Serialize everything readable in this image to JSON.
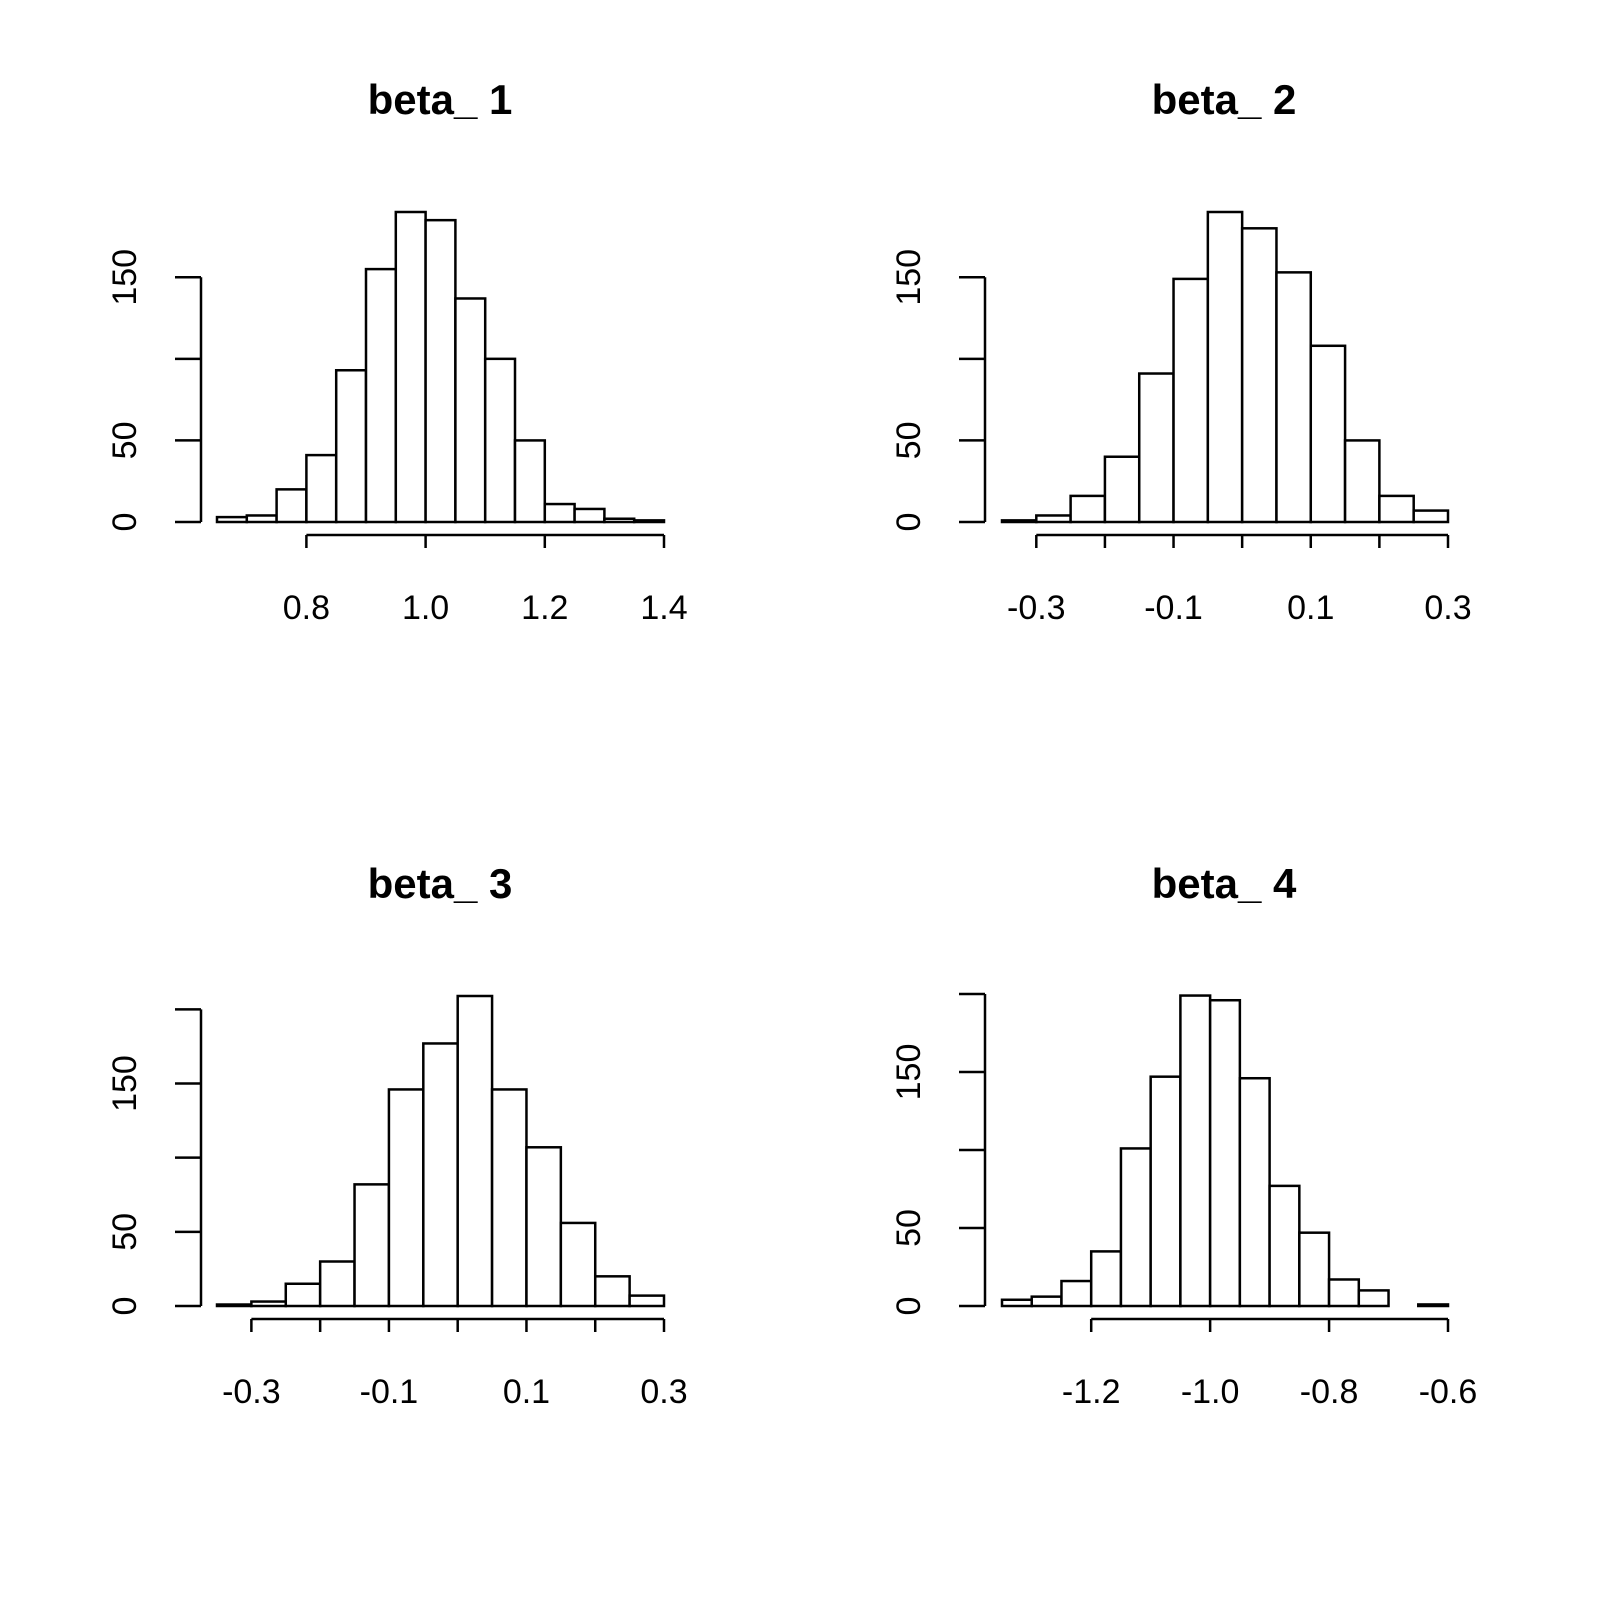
{
  "chart_data": [
    {
      "type": "histogram",
      "title": "beta_ 1",
      "bins": [
        0.65,
        0.7,
        0.75,
        0.8,
        0.85,
        0.9,
        0.95,
        1.0,
        1.05,
        1.1,
        1.15,
        1.2,
        1.25,
        1.3,
        1.35,
        1.4
      ],
      "values": [
        3,
        4,
        20,
        41,
        93,
        155,
        190,
        185,
        137,
        100,
        50,
        11,
        8,
        2,
        1
      ],
      "xlim": [
        0.65,
        1.4
      ],
      "xticks": [
        0.8,
        {
          "value": 1,
          "label": "1.0"
        },
        1.2,
        1.4
      ],
      "ylim": [
        0,
        190
      ],
      "yticks": [
        0,
        50,
        {
          "value": 100,
          "label": null
        },
        150
      ]
    },
    {
      "type": "histogram",
      "title": "beta_ 2",
      "bins": [
        -0.35,
        -0.3,
        -0.25,
        -0.2,
        -0.15,
        -0.1,
        -0.05,
        0,
        0.05,
        0.1,
        0.15,
        0.2,
        0.25,
        0.3
      ],
      "values": [
        1,
        4,
        16,
        40,
        91,
        149,
        190,
        180,
        153,
        108,
        50,
        16,
        7
      ],
      "xlim": [
        -0.35,
        0.3
      ],
      "xticks": [
        -0.3,
        {
          "value": -0.2,
          "label": null
        },
        -0.1,
        {
          "value": 0,
          "label": null
        },
        0.1,
        {
          "value": 0.2,
          "label": null
        },
        0.3
      ],
      "ylim": [
        0,
        190
      ],
      "yticks": [
        0,
        50,
        {
          "value": 100,
          "label": null
        },
        150
      ]
    },
    {
      "type": "histogram",
      "title": "beta_ 3",
      "bins": [
        -0.35,
        -0.3,
        -0.25,
        -0.2,
        -0.15,
        -0.1,
        -0.05,
        0,
        0.05,
        0.1,
        0.15,
        0.2,
        0.25,
        0.3
      ],
      "values": [
        1,
        3,
        15,
        30,
        82,
        146,
        177,
        209,
        146,
        107,
        56,
        20,
        7
      ],
      "xlim": [
        -0.35,
        0.3
      ],
      "xticks": [
        -0.3,
        {
          "value": -0.2,
          "label": null
        },
        -0.1,
        {
          "value": 0,
          "label": null
        },
        0.1,
        {
          "value": 0.2,
          "label": null
        },
        0.3
      ],
      "ylim": [
        0,
        209
      ],
      "yticks": [
        0,
        50,
        {
          "value": 100,
          "label": null
        },
        150,
        {
          "value": 200,
          "label": null
        }
      ]
    },
    {
      "type": "histogram",
      "title": "beta_ 4",
      "bins": [
        -1.35,
        -1.3,
        -1.25,
        -1.2,
        -1.15,
        -1.1,
        -1.05,
        -1.0,
        -0.95,
        -0.9,
        -0.85,
        -0.8,
        -0.75,
        -0.7,
        -0.65,
        -0.6
      ],
      "values": [
        4,
        6,
        16,
        35,
        101,
        147,
        199,
        196,
        146,
        77,
        47,
        17,
        10,
        0,
        1
      ],
      "xlim": [
        -1.35,
        -0.6
      ],
      "xticks": [
        -1.2,
        {
          "value": -1,
          "label": "-1.0"
        },
        -0.8,
        -0.6
      ],
      "ylim": [
        0,
        200
      ],
      "yticks": [
        0,
        50,
        {
          "value": 100,
          "label": null
        },
        150,
        {
          "value": 200,
          "label": null
        }
      ]
    }
  ]
}
